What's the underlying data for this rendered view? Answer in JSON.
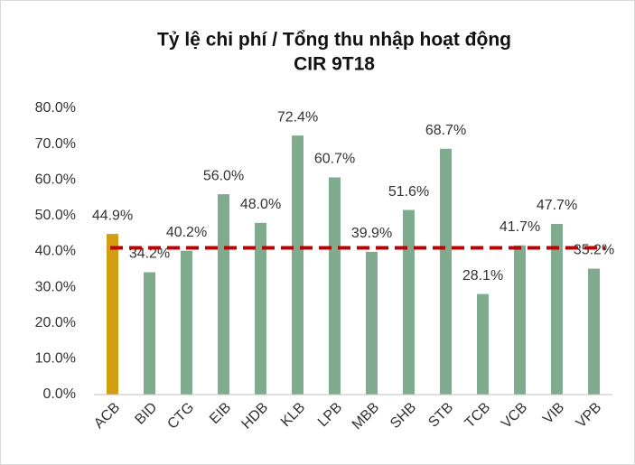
{
  "chart_data": {
    "type": "bar",
    "title": [
      "Tỷ lệ chi phí / Tổng thu nhập hoạt động",
      "CIR 9T18"
    ],
    "categories": [
      "ACB",
      "BID",
      "CTG",
      "EIB",
      "HDB",
      "KLB",
      "LPB",
      "MBB",
      "SHB",
      "STB",
      "TCB",
      "VCB",
      "VIB",
      "VPB"
    ],
    "values": [
      44.9,
      34.2,
      40.2,
      56.0,
      48.0,
      72.4,
      60.7,
      39.9,
      51.6,
      68.7,
      28.1,
      41.7,
      47.7,
      35.2
    ],
    "value_labels": [
      "44.9%",
      "34.2%",
      "40.2%",
      "56.0%",
      "48.0%",
      "72.4%",
      "60.7%",
      "39.9%",
      "51.6%",
      "68.7%",
      "28.1%",
      "41.7%",
      "47.7%",
      "35.2%"
    ],
    "colors": [
      "#d29e10",
      "#7fab8e",
      "#7fab8e",
      "#7fab8e",
      "#7fab8e",
      "#7fab8e",
      "#7fab8e",
      "#7fab8e",
      "#7fab8e",
      "#7fab8e",
      "#7fab8e",
      "#7fab8e",
      "#7fab8e",
      "#7fab8e"
    ],
    "ylim": [
      0,
      80
    ],
    "yticks": [
      {
        "value": 0,
        "label": "0.0%"
      },
      {
        "value": 10,
        "label": "10.0%"
      },
      {
        "value": 20,
        "label": "20.0%"
      },
      {
        "value": 30,
        "label": "30.0%"
      },
      {
        "value": 40,
        "label": "40.0%"
      },
      {
        "value": 50,
        "label": "50.0%"
      },
      {
        "value": 60,
        "label": "60.0%"
      },
      {
        "value": 70,
        "label": "70.0%"
      },
      {
        "value": 80,
        "label": "80.0%"
      }
    ],
    "reference_line": {
      "value": 41,
      "color": "#c00000"
    },
    "grid": false
  }
}
